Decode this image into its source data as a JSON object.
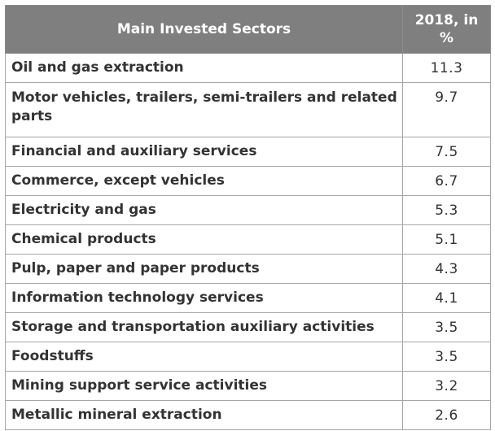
{
  "header": {
    "sector_col": "Main Invested Sectors",
    "value_col": "2018, in %"
  },
  "rows": [
    {
      "sector": "Oil and gas extraction",
      "value": "11.3"
    },
    {
      "sector": "Motor vehicles, trailers, semi-trailers and related parts",
      "value": "9.7"
    },
    {
      "sector": "Financial and auxiliary services",
      "value": "7.5"
    },
    {
      "sector": "Commerce, except vehicles",
      "value": "6.7"
    },
    {
      "sector": "Electricity and gas",
      "value": "5.3"
    },
    {
      "sector": "Chemical products",
      "value": "5.1"
    },
    {
      "sector": "Pulp, paper and paper products",
      "value": "4.3"
    },
    {
      "sector": "Information technology services",
      "value": "4.1"
    },
    {
      "sector": "Storage and transportation auxiliary activities",
      "value": "3.5"
    },
    {
      "sector": "Foodstuffs",
      "value": "3.5"
    },
    {
      "sector": "Mining support service activities",
      "value": "3.2"
    },
    {
      "sector": "Metallic mineral extraction",
      "value": "2.6"
    }
  ],
  "colors": {
    "header_bg": "#7f7f7f",
    "header_text": "#ffffff",
    "border": "#a6a6a6",
    "text": "#333333"
  }
}
